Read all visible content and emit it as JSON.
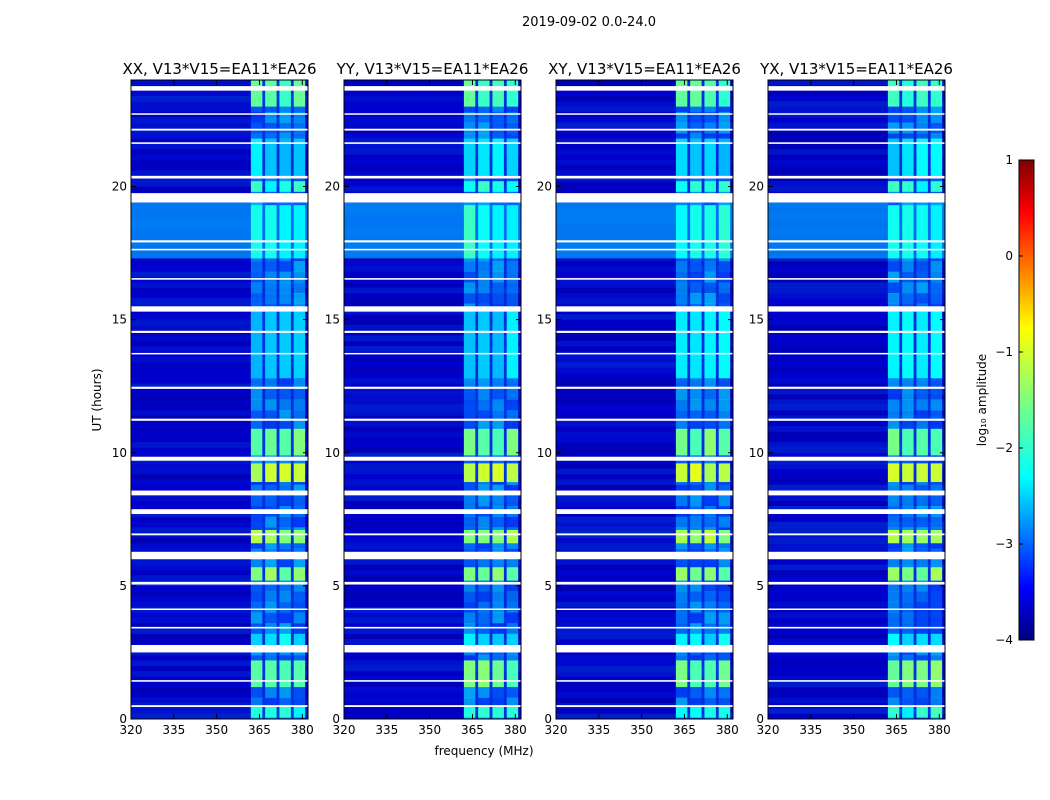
{
  "figure_title": "2019-09-02 0.0-24.0",
  "colors": {
    "background": "#00008f",
    "flag": "#ffffff",
    "jet": [
      "#00007f",
      "#0000ff",
      "#007fff",
      "#00ffff",
      "#7fff7f",
      "#ffff00",
      "#ff7f00",
      "#ff0000",
      "#7f0000"
    ]
  },
  "chart_data": {
    "type": "heatmap",
    "title": "2019-09-02 0.0-24.0",
    "xlabel": "frequency (MHz)",
    "ylabel": "UT (hours)",
    "xlim": [
      320,
      382
    ],
    "ylim": [
      0,
      24
    ],
    "x_ticks": [
      "320",
      "335",
      "350",
      "365",
      "380"
    ],
    "y_ticks": [
      "0",
      "5",
      "10",
      "15",
      "20"
    ],
    "panels": [
      {
        "title": "XX, V13*V15=EA11*EA26",
        "ticks_x": [
          "320",
          "335",
          "350",
          "365",
          "380"
        ],
        "ticks_y": [
          "0",
          "5",
          "10",
          "15",
          "20"
        ]
      },
      {
        "title": "YY, V13*V15=EA11*EA26",
        "ticks_x": [
          "320",
          "335",
          "350",
          "365",
          "380"
        ],
        "ticks_y": [
          "0",
          "5",
          "10",
          "15",
          "20"
        ]
      },
      {
        "title": "XY, V13*V15=EA11*EA26",
        "ticks_x": [
          "320",
          "335",
          "350",
          "365",
          "380"
        ],
        "ticks_y": [
          "0",
          "5",
          "10",
          "15",
          "20"
        ]
      },
      {
        "title": "YX, V13*V15=EA11*EA26",
        "ticks_x": [
          "320",
          "335",
          "350",
          "365",
          "380"
        ],
        "ticks_y": [
          "0",
          "5",
          "10",
          "15",
          "20"
        ]
      }
    ],
    "rfi_band_mhz": [
      362,
      381
    ],
    "rfi_channels_mhz": [
      [
        362,
        366
      ],
      [
        367,
        371
      ],
      [
        372,
        376
      ],
      [
        377,
        381
      ]
    ],
    "bright_intervals_h": [
      [
        0.05,
        0.45,
        -2.0
      ],
      [
        1.2,
        2.2,
        -1.6
      ],
      [
        2.7,
        3.2,
        -2.2
      ],
      [
        5.2,
        5.7,
        -1.5
      ],
      [
        6.6,
        7.1,
        -1.3
      ],
      [
        8.9,
        9.6,
        -1.2
      ],
      [
        9.9,
        10.9,
        -1.6
      ],
      [
        12.8,
        15.3,
        -2.3
      ],
      [
        17.3,
        19.3,
        -2.0
      ],
      [
        19.8,
        20.2,
        -2.0
      ],
      [
        20.4,
        21.8,
        -2.3
      ],
      [
        23.0,
        24.0,
        -1.8
      ]
    ],
    "broadband_intervals_h": [
      [
        17.3,
        19.4,
        -2.6
      ]
    ],
    "flagged_intervals_h": [
      [
        0.45,
        0.52
      ],
      [
        1.4,
        1.46
      ],
      [
        2.5,
        2.78
      ],
      [
        3.4,
        3.46
      ],
      [
        4.1,
        4.15
      ],
      [
        5.05,
        5.15
      ],
      [
        6.0,
        6.28
      ],
      [
        6.9,
        6.97
      ],
      [
        7.7,
        7.88
      ],
      [
        8.4,
        8.58
      ],
      [
        9.7,
        9.85
      ],
      [
        11.2,
        11.28
      ],
      [
        12.4,
        12.48
      ],
      [
        13.7,
        13.75
      ],
      [
        14.5,
        14.58
      ],
      [
        15.3,
        15.5
      ],
      [
        16.5,
        16.56
      ],
      [
        17.6,
        17.66
      ],
      [
        17.9,
        17.98
      ],
      [
        19.4,
        19.75
      ],
      [
        20.3,
        20.4
      ],
      [
        21.6,
        21.66
      ],
      [
        22.1,
        22.17
      ],
      [
        22.7,
        22.75
      ],
      [
        23.6,
        23.77
      ]
    ],
    "colorbar": {
      "label": "log₁₀ amplitude",
      "range": [
        -4,
        1
      ],
      "ticks": [
        "1",
        "0",
        "−1",
        "−2",
        "−3",
        "−4"
      ]
    }
  }
}
